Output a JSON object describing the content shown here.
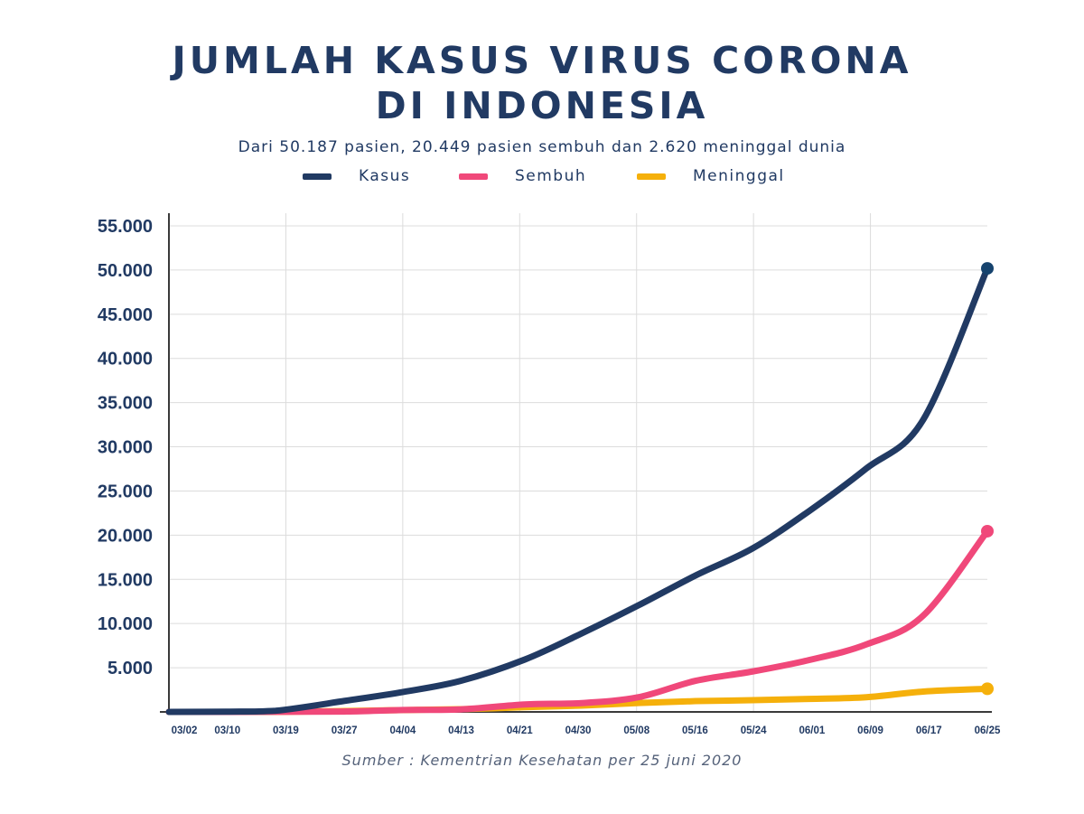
{
  "chart_data": {
    "type": "line",
    "title_line1": "JUMLAH KASUS VIRUS CORONA",
    "title_line2": "DI INDONESIA",
    "subtitle": "Dari 50.187 pasien, 20.449 pasien sembuh dan 2.620 meninggal dunia",
    "source": "Sumber : Kementrian Kesehatan per 25 juni 2020",
    "ylim": [
      0,
      55000
    ],
    "y_ticks": [
      {
        "value": 5000,
        "label": "5.000"
      },
      {
        "value": 10000,
        "label": "10.000"
      },
      {
        "value": 15000,
        "label": "15.000"
      },
      {
        "value": 20000,
        "label": "20.000"
      },
      {
        "value": 25000,
        "label": "25.000"
      },
      {
        "value": 30000,
        "label": "30.000"
      },
      {
        "value": 35000,
        "label": "35.000"
      },
      {
        "value": 40000,
        "label": "40.000"
      },
      {
        "value": 45000,
        "label": "45.000"
      },
      {
        "value": 50000,
        "label": "50.000"
      },
      {
        "value": 55000,
        "label": "55.000"
      }
    ],
    "x_ticks": [
      "03/02",
      "03/10",
      "03/19",
      "03/27",
      "04/04",
      "04/13",
      "04/21",
      "04/30",
      "05/08",
      "05/16",
      "05/24",
      "06/01",
      "06/09",
      "06/17",
      "06/25"
    ],
    "x_day_range": [
      0,
      115
    ],
    "series": [
      {
        "name": "Kasus",
        "color": "#213a63",
        "points": [
          [
            0,
            2
          ],
          [
            8,
            27
          ],
          [
            15,
            134
          ],
          [
            25,
            1285
          ],
          [
            33,
            2273
          ],
          [
            41,
            3512
          ],
          [
            50,
            5923
          ],
          [
            58,
            8882
          ],
          [
            66,
            12071
          ],
          [
            74,
            15438
          ],
          [
            82,
            18496
          ],
          [
            90,
            22750
          ],
          [
            98,
            27549
          ],
          [
            106,
            33076
          ],
          [
            115,
            50187
          ]
        ]
      },
      {
        "name": "Sembuh",
        "color": "#f0487a",
        "points": [
          [
            0,
            0
          ],
          [
            15,
            8
          ],
          [
            25,
            46
          ],
          [
            33,
            222
          ],
          [
            41,
            282
          ],
          [
            50,
            842
          ],
          [
            58,
            1002
          ],
          [
            66,
            1665
          ],
          [
            74,
            3518
          ],
          [
            82,
            4575
          ],
          [
            90,
            5877
          ],
          [
            98,
            7637
          ],
          [
            106,
            10904
          ],
          [
            115,
            20449
          ]
        ]
      },
      {
        "name": "Meninggal",
        "color": "#f5b00b",
        "points": [
          [
            0,
            0
          ],
          [
            15,
            5
          ],
          [
            25,
            102
          ],
          [
            33,
            209
          ],
          [
            41,
            306
          ],
          [
            50,
            535
          ],
          [
            58,
            720
          ],
          [
            66,
            1007
          ],
          [
            74,
            1221
          ],
          [
            82,
            1326
          ],
          [
            90,
            1473
          ],
          [
            98,
            1665
          ],
          [
            106,
            2305
          ],
          [
            115,
            2620
          ]
        ]
      }
    ]
  }
}
